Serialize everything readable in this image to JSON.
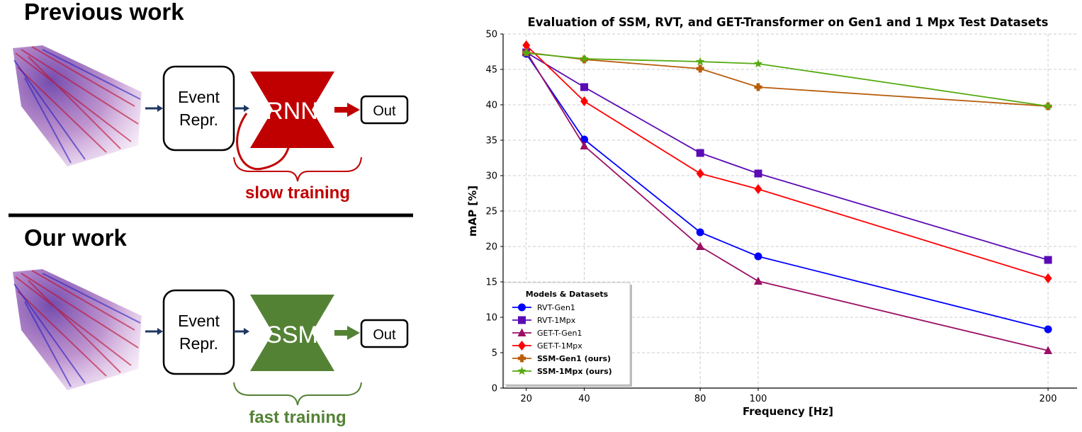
{
  "left_panel": {
    "previous_title": "Previous work",
    "our_title": "Our work",
    "event_repr_line1": "Event",
    "event_repr_line2": "Repr.",
    "rnn_label": "RNN",
    "ssm_label": "SSM",
    "out_label": "Out",
    "slow_label": "slow training",
    "fast_label": "fast training",
    "colors": {
      "rnn": "#c00000",
      "ssm": "#548235",
      "arrow": "#1f3864"
    }
  },
  "chart_data": {
    "type": "line",
    "title": "Evaluation of SSM, RVT, and GET-Transformer on Gen1 and 1 Mpx Test Datasets",
    "xlabel": "Frequency [Hz]",
    "ylabel": "mAP [%]",
    "x": [
      20,
      40,
      80,
      100,
      200
    ],
    "xticks": [
      "20",
      "40",
      "80",
      "100",
      "200"
    ],
    "yticks": [
      "0",
      "5",
      "10",
      "15",
      "20",
      "25",
      "30",
      "35",
      "40",
      "45",
      "50"
    ],
    "xlim": [
      12,
      210
    ],
    "ylim": [
      0,
      50
    ],
    "grid": true,
    "legend_title": "Models & Datasets",
    "legend_position": "lower-left",
    "series": [
      {
        "name": "RVT-Gen1",
        "values": [
          47.2,
          35.1,
          22.0,
          18.6,
          8.3
        ],
        "color": "#0000ff",
        "marker": "circle",
        "bold": false
      },
      {
        "name": "RVT-1Mpx",
        "values": [
          47.4,
          42.5,
          33.2,
          30.3,
          18.1
        ],
        "color": "#5b0bb5",
        "marker": "square",
        "bold": false
      },
      {
        "name": "GET-T-Gen1",
        "values": [
          47.5,
          34.2,
          20.0,
          15.1,
          5.3
        ],
        "color": "#9b0f64",
        "marker": "triangle",
        "bold": false
      },
      {
        "name": "GET-T-1Mpx",
        "values": [
          48.4,
          40.5,
          30.3,
          28.1,
          15.5
        ],
        "color": "#ff0000",
        "marker": "diamond",
        "bold": false
      },
      {
        "name": "SSM-Gen1 (ours)",
        "values": [
          47.4,
          46.4,
          45.1,
          42.5,
          39.8
        ],
        "color": "#b85c0a",
        "marker": "plus",
        "bold": true
      },
      {
        "name": "SSM-1Mpx (ours)",
        "values": [
          47.3,
          46.5,
          46.1,
          45.8,
          39.8
        ],
        "color": "#55aa10",
        "marker": "star",
        "bold": true
      }
    ]
  }
}
